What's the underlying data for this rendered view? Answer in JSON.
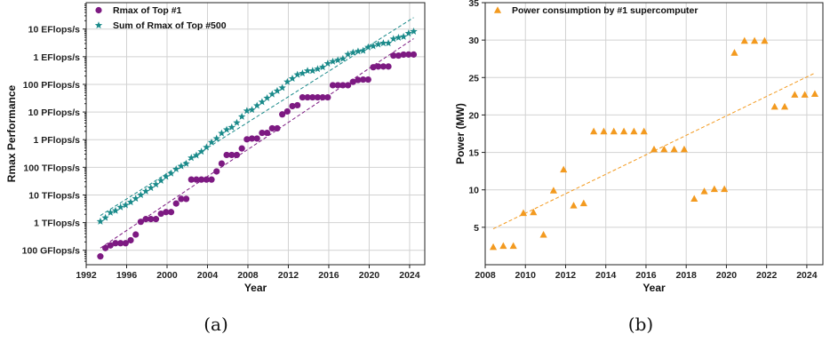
{
  "colors": {
    "rmax": "#7d1a82",
    "sum": "#1a8a8a",
    "power": "#f39a1f"
  },
  "chart_data": [
    {
      "type": "scatter",
      "panel": "(a)",
      "xlabel": "Year",
      "ylabel": "Rmax Performance",
      "yscale": "log",
      "grid": true,
      "legend": "top-left",
      "xlim": [
        1992,
        2025.5
      ],
      "ylim": [
        30000000000.0,
        9e+19
      ],
      "xticks": [
        1992,
        1996,
        2000,
        2004,
        2008,
        2012,
        2016,
        2020,
        2024
      ],
      "xtick_labels": [
        "1992",
        "1996",
        "2000",
        "2004",
        "2008",
        "2012",
        "2016",
        "2020",
        "2024"
      ],
      "yticks": [
        100000000000.0,
        1000000000000.0,
        10000000000000.0,
        100000000000000.0,
        1000000000000000.0,
        1e+16,
        1e+17,
        1e+18,
        1e+19
      ],
      "ytick_labels": [
        "100 GFlops/s",
        "1 TFlops/s",
        "10 TFlops/s",
        "100 TFlops/s",
        "1 PFlops/s",
        "10 PFlops/s",
        "100 PFlops/s",
        "1 EFlops/s",
        "10 EFlops/s"
      ],
      "series": [
        {
          "name": "Rmax of Top #1",
          "marker": "circle",
          "x": [
            1993.4,
            1993.9,
            1994.4,
            1994.9,
            1995.4,
            1995.9,
            1996.4,
            1996.9,
            1997.4,
            1997.9,
            1998.4,
            1998.9,
            1999.4,
            1999.9,
            2000.4,
            2000.9,
            2001.4,
            2001.9,
            2002.4,
            2002.9,
            2003.4,
            2003.9,
            2004.4,
            2004.9,
            2005.4,
            2005.9,
            2006.4,
            2006.9,
            2007.4,
            2007.9,
            2008.4,
            2008.9,
            2009.4,
            2009.9,
            2010.4,
            2010.9,
            2011.4,
            2011.9,
            2012.4,
            2012.9,
            2013.4,
            2013.9,
            2014.4,
            2014.9,
            2015.4,
            2015.9,
            2016.4,
            2016.9,
            2017.4,
            2017.9,
            2018.4,
            2018.9,
            2019.4,
            2019.9,
            2020.4,
            2020.9,
            2021.4,
            2021.9,
            2022.4,
            2022.9,
            2023.4,
            2023.9,
            2024.4
          ],
          "y": [
            60000000000.0,
            120000000000.0,
            150000000000.0,
            180000000000.0,
            180000000000.0,
            180000000000.0,
            230000000000.0,
            370000000000.0,
            1070000000000.0,
            1340000000000.0,
            1340000000000.0,
            1340000000000.0,
            2100000000000.0,
            2400000000000.0,
            2400000000000.0,
            4900000000000.0,
            7200000000000.0,
            7200000000000.0,
            36000000000000.0,
            36000000000000.0,
            36000000000000.0,
            36000000000000.0,
            36000000000000.0,
            71000000000000.0,
            137000000000000.0,
            280000000000000.0,
            280000000000000.0,
            280000000000000.0,
            480000000000000.0,
            1030000000000000.0,
            1100000000000000.0,
            1100000000000000.0,
            1760000000000000.0,
            1760000000000000.0,
            2570000000000000.0,
            2570000000000000.0,
            8200000000000000.0,
            1.05e+16,
            1.63e+16,
            1.76e+16,
            3.39e+16,
            3.39e+16,
            3.39e+16,
            3.39e+16,
            3.39e+16,
            3.39e+16,
            9.3e+16,
            9.3e+16,
            9.3e+16,
            9.3e+16,
            1.23e+17,
            1.44e+17,
            1.49e+17,
            1.49e+17,
            4.16e+17,
            4.42e+17,
            4.42e+17,
            4.42e+17,
            1.1e+18,
            1.1e+18,
            1.19e+18,
            1.2e+18,
            1.2e+18
          ]
        },
        {
          "name": "Sum of Rmax of Top #500",
          "marker": "star",
          "x": [
            1993.4,
            1993.9,
            1994.4,
            1994.9,
            1995.4,
            1995.9,
            1996.4,
            1996.9,
            1997.4,
            1997.9,
            1998.4,
            1998.9,
            1999.4,
            1999.9,
            2000.4,
            2000.9,
            2001.4,
            2001.9,
            2002.4,
            2002.9,
            2003.4,
            2003.9,
            2004.4,
            2004.9,
            2005.4,
            2005.9,
            2006.4,
            2006.9,
            2007.4,
            2007.9,
            2008.4,
            2008.9,
            2009.4,
            2009.9,
            2010.4,
            2010.9,
            2011.4,
            2011.9,
            2012.4,
            2012.9,
            2013.4,
            2013.9,
            2014.4,
            2014.9,
            2015.4,
            2015.9,
            2016.4,
            2016.9,
            2017.4,
            2017.9,
            2018.4,
            2018.9,
            2019.4,
            2019.9,
            2020.4,
            2020.9,
            2021.4,
            2021.9,
            2022.4,
            2022.9,
            2023.4,
            2023.9,
            2024.4
          ],
          "y": [
            1100000000000.0,
            1500000000000.0,
            2300000000000.0,
            2700000000000.0,
            3600000000000.0,
            4300000000000.0,
            5500000000000.0,
            7400000000000.0,
            10000000000000.0,
            13600000000000.0,
            18000000000000.0,
            24000000000000.0,
            33000000000000.0,
            46000000000000.0,
            60000000000000.0,
            86000000000000.0,
            110000000000000.0,
            135000000000000.0,
            220000000000000.0,
            270000000000000.0,
            370000000000000.0,
            530000000000000.0,
            800000000000000.0,
            1100000000000000.0,
            1700000000000000.0,
            2300000000000000.0,
            2800000000000000.0,
            4100000000000000.0,
            6800000000000000.0,
            1.1e+16,
            1.2e+16,
            1.7e+16,
            2.3e+16,
            3.2e+16,
            4.4e+16,
            5.8e+16,
            7.5e+16,
            1.23e+17,
            1.62e+17,
            2.24e+17,
            2.5e+17,
            3.09e+17,
            3.09e+17,
            3.6e+17,
            4.2e+17,
            5.66e+17,
            6.7e+17,
            7.5e+17,
            8.45e+17,
            1.22e+18,
            1.41e+18,
            1.57e+18,
            1.65e+18,
            2.2e+18,
            2.4e+18,
            2.8e+18,
            3.1e+18,
            3.1e+18,
            4.4e+18,
            4.9e+18,
            5.3e+18,
            7e+18,
            8.2e+18
          ]
        },
        {
          "name": "Rmax of Top #1 trend",
          "line": "dashed",
          "x": [
            1993.4,
            2024.4
          ],
          "y": [
            120000000000.0,
            4.5e+18
          ]
        },
        {
          "name": "Sum of Rmax of Top #500 trend",
          "line": "dashed",
          "x": [
            1993.4,
            2024.4
          ],
          "y": [
            1800000000000.0,
            2.6e+19
          ]
        }
      ]
    },
    {
      "type": "scatter",
      "panel": "(b)",
      "xlabel": "Year",
      "ylabel": "Power (MW)",
      "grid": true,
      "legend": "top-left",
      "xlim": [
        2008,
        2024.8
      ],
      "ylim": [
        0,
        35
      ],
      "xticks": [
        2008,
        2010,
        2012,
        2014,
        2016,
        2018,
        2020,
        2022,
        2024
      ],
      "xtick_labels": [
        "2008",
        "2010",
        "2012",
        "2014",
        "2016",
        "2018",
        "2020",
        "2022",
        "2024"
      ],
      "yticks": [
        5,
        10,
        15,
        20,
        25,
        30,
        35
      ],
      "ytick_labels": [
        "5",
        "10",
        "15",
        "20",
        "25",
        "30",
        "35"
      ],
      "series": [
        {
          "name": "Power consumption by #1 supercomputer",
          "marker": "triangle",
          "x": [
            2008.4,
            2008.9,
            2009.4,
            2009.9,
            2010.4,
            2010.9,
            2011.4,
            2011.9,
            2012.4,
            2012.9,
            2013.4,
            2013.9,
            2014.4,
            2014.9,
            2015.4,
            2015.9,
            2016.4,
            2016.9,
            2017.4,
            2017.9,
            2018.4,
            2018.9,
            2019.4,
            2019.9,
            2020.4,
            2020.9,
            2021.4,
            2021.9,
            2022.4,
            2022.9,
            2023.4,
            2023.9,
            2024.4
          ],
          "y": [
            2.35,
            2.5,
            2.5,
            6.9,
            7.0,
            4.0,
            9.9,
            12.7,
            7.9,
            8.2,
            17.8,
            17.8,
            17.8,
            17.8,
            17.8,
            17.8,
            15.4,
            15.4,
            15.4,
            15.4,
            8.8,
            9.8,
            10.1,
            10.1,
            28.3,
            29.9,
            29.9,
            29.9,
            21.1,
            21.1,
            22.7,
            22.7,
            22.8
          ]
        },
        {
          "name": "Power trend",
          "line": "dashed",
          "x": [
            2008.4,
            2024.4
          ],
          "y": [
            4.8,
            25.6
          ]
        }
      ]
    }
  ]
}
